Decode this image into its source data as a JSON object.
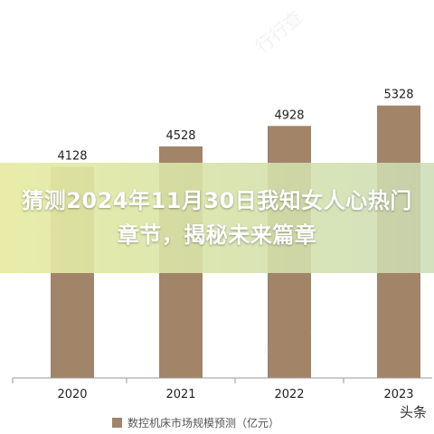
{
  "overlay": {
    "title": "猜测2024年11月30日我知女人心热门章节，揭秘未来篇章"
  },
  "corner_mark": "头条",
  "colors": {
    "bar": "#a28468",
    "axis": "#999999",
    "overlay_left": "#e6eba0",
    "overlay_right": "#cddcb4"
  },
  "chart_data": {
    "type": "bar",
    "categories": [
      "2020",
      "2021",
      "2022",
      "2023"
    ],
    "values": [
      4128,
      4528,
      4928,
      5328
    ],
    "data_labels": [
      "4128",
      "4528",
      "4928",
      "5328"
    ],
    "legend": [
      "数控机床市场规模预测（亿元）"
    ],
    "series": [
      {
        "name": "数控机床市场规模预测（亿元）",
        "values": [
          4128,
          4528,
          4928,
          5328
        ]
      }
    ],
    "ylim": [
      0,
      5800
    ],
    "grid": false,
    "legend_position": "bottom"
  }
}
